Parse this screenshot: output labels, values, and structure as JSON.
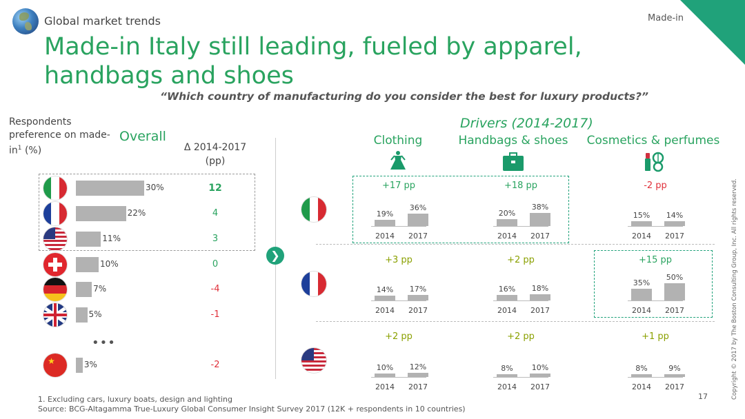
{
  "header": {
    "section": "Global market trends",
    "tag": "Made-in",
    "title": "Made-in Italy still leading, fueled by apparel, handbags and shoes",
    "question": "“Which country of manufacturing do you consider the best for luxury products?”"
  },
  "colors": {
    "accent": "#29a35f",
    "teal": "#20a27a",
    "bar": "#b2b2b2",
    "negative": "#e0303a",
    "positive_pp": "#8aa000"
  },
  "overall": {
    "respondents_label": "Respondents preference on made-in",
    "footnote_marker": "1",
    "unit": " (%)",
    "heading": "Overall",
    "delta_header_line1": "Δ 2014-2017",
    "delta_header_line2": "(pp)",
    "ellipsis": "•••"
  },
  "drivers": {
    "heading": "Drivers (2014-2017)",
    "categories": [
      "Clothing",
      "Handbags & shoes",
      "Cosmetics & perfumes"
    ],
    "icons": [
      "dress-icon",
      "handbag-icon",
      "cosmetics-icon"
    ],
    "year_labels": [
      "2014",
      "2017"
    ]
  },
  "chart_data": [
    {
      "type": "bar",
      "orientation": "horizontal",
      "title": "Overall",
      "ylabel": "Respondents preference on made-in (%)",
      "categories": [
        "Italy",
        "France",
        "USA",
        "Switzerland",
        "Germany",
        "UK",
        "China"
      ],
      "values": [
        30,
        22,
        11,
        10,
        7,
        5,
        3
      ],
      "value_labels": [
        "30%",
        "22%",
        "11%",
        "10%",
        "7%",
        "5%",
        "3%"
      ],
      "delta_2014_2017_pp": [
        12,
        4,
        3,
        0,
        -4,
        -1,
        -2
      ],
      "delta_labels": [
        "12",
        "4",
        "3",
        "0",
        "-4",
        "-1",
        "-2"
      ],
      "flag_icons": [
        "italy-flag-icon",
        "france-flag-icon",
        "usa-flag-icon",
        "switzerland-flag-icon",
        "germany-flag-icon",
        "uk-flag-icon",
        "china-flag-icon"
      ],
      "highlighted": [
        "Italy",
        "France",
        "USA"
      ]
    },
    {
      "type": "bar",
      "title": "Drivers (2014-2017)",
      "x": [
        "2014",
        "2017"
      ],
      "rows": [
        {
          "country": "Italy",
          "flag_icon": "italy-flag-icon",
          "groups": [
            {
              "category": "Clothing",
              "pp": "+17 pp",
              "values": [
                19,
                36
              ],
              "labels": [
                "19%",
                "36%"
              ],
              "highlight": true
            },
            {
              "category": "Handbags & shoes",
              "pp": "+18 pp",
              "values": [
                20,
                38
              ],
              "labels": [
                "20%",
                "38%"
              ],
              "highlight": true
            },
            {
              "category": "Cosmetics & perfumes",
              "pp": "-2 pp",
              "values": [
                15,
                14
              ],
              "labels": [
                "15%",
                "14%"
              ],
              "highlight": false
            }
          ]
        },
        {
          "country": "France",
          "flag_icon": "france-flag-icon",
          "groups": [
            {
              "category": "Clothing",
              "pp": "+3 pp",
              "values": [
                14,
                17
              ],
              "labels": [
                "14%",
                "17%"
              ],
              "highlight": false
            },
            {
              "category": "Handbags & shoes",
              "pp": "+2 pp",
              "values": [
                16,
                18
              ],
              "labels": [
                "16%",
                "18%"
              ],
              "highlight": false
            },
            {
              "category": "Cosmetics & perfumes",
              "pp": "+15 pp",
              "values": [
                35,
                50
              ],
              "labels": [
                "35%",
                "50%"
              ],
              "highlight": true
            }
          ]
        },
        {
          "country": "USA",
          "flag_icon": "usa-flag-icon",
          "groups": [
            {
              "category": "Clothing",
              "pp": "+2 pp",
              "values": [
                10,
                12
              ],
              "labels": [
                "10%",
                "12%"
              ],
              "highlight": false
            },
            {
              "category": "Handbags & shoes",
              "pp": "+2 pp",
              "values": [
                8,
                10
              ],
              "labels": [
                "8%",
                "10%"
              ],
              "highlight": false
            },
            {
              "category": "Cosmetics & perfumes",
              "pp": "+1 pp",
              "values": [
                8,
                9
              ],
              "labels": [
                "8%",
                "9%"
              ],
              "highlight": false
            }
          ]
        }
      ]
    }
  ],
  "footer": {
    "footnote": "1. Excluding cars, luxury boats, design and lighting",
    "source": "Source: BCG-Altagamma True-Luxury Global Consumer Insight Survey 2017 (12K + respondents in 10 countries)",
    "page": "17",
    "copyright": "Copyright © 2017 by The Boston Consulting Group, Inc. All rights reserved."
  }
}
